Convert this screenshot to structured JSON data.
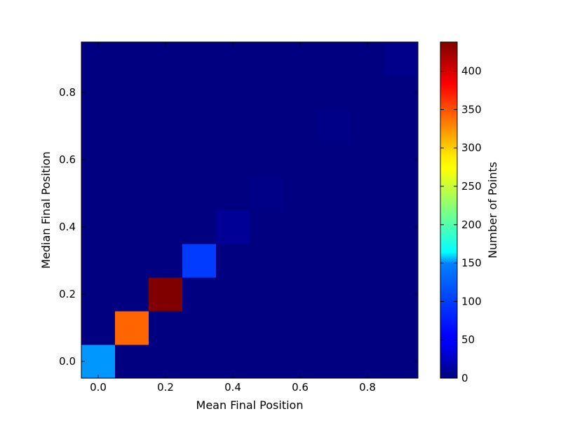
{
  "chart_data": {
    "type": "heatmap",
    "title": "",
    "xlabel": "Mean Final Position",
    "ylabel": "Median Final Position",
    "colorbar_label": "Number of Points",
    "colormap": "jet",
    "xlim": [
      -0.05,
      0.95
    ],
    "ylim": [
      -0.05,
      0.95
    ],
    "bins": {
      "x_start": -0.05,
      "y_start": -0.05,
      "width": 0.1,
      "nx": 10,
      "ny": 10
    },
    "x_ticks": [
      "0.0",
      "0.2",
      "0.4",
      "0.6",
      "0.8"
    ],
    "y_ticks": [
      "0.0",
      "0.2",
      "0.4",
      "0.6",
      "0.8"
    ],
    "colorbar_ticks": [
      "0",
      "50",
      "100",
      "150",
      "200",
      "250",
      "300",
      "350",
      "400"
    ],
    "colorbar_range": [
      0,
      438
    ],
    "cells": [
      {
        "x": 0.0,
        "y": 0.0,
        "value": 120
      },
      {
        "x": 0.1,
        "y": 0.1,
        "value": 340
      },
      {
        "x": 0.2,
        "y": 0.2,
        "value": 438
      },
      {
        "x": 0.3,
        "y": 0.3,
        "value": 80
      },
      {
        "x": 0.4,
        "y": 0.4,
        "value": 10
      },
      {
        "x": 0.5,
        "y": 0.5,
        "value": 3
      },
      {
        "x": 0.7,
        "y": 0.7,
        "value": 3
      },
      {
        "x": 0.9,
        "y": 0.9,
        "value": 5
      }
    ],
    "grid": false
  }
}
